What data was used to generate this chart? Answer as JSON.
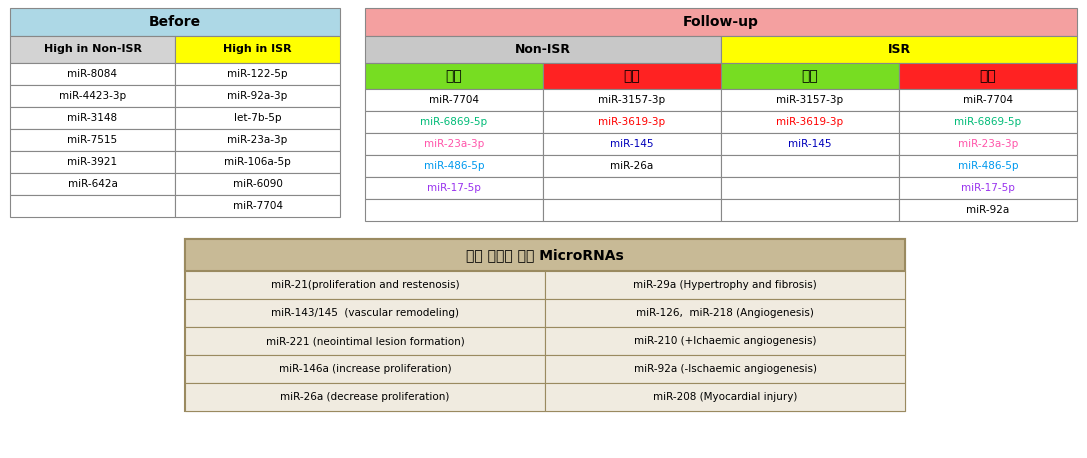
{
  "before_title": "Before",
  "before_title_bg": "#ADD8E6",
  "before_col1_header": "High in Non-ISR",
  "before_col2_header": "High in ISR",
  "before_col1_header_bg": "#D3D3D3",
  "before_col2_header_bg": "#FFFF00",
  "before_col1": [
    "miR-8084",
    "miR-4423-3p",
    "miR-3148",
    "miR-7515",
    "miR-3921",
    "miR-642a"
  ],
  "before_col2": [
    "miR-122-5p",
    "miR-92a-3p",
    "let-7b-5p",
    "miR-23a-3p",
    "miR-106a-5p",
    "miR-6090",
    "miR-7704"
  ],
  "before_col1_colors": [
    "#000000",
    "#000000",
    "#000000",
    "#000000",
    "#000000",
    "#000000"
  ],
  "before_col2_colors": [
    "#000000",
    "#000000",
    "#000000",
    "#000000",
    "#000000",
    "#000000",
    "#000000"
  ],
  "followup_title": "Follow-up",
  "followup_title_bg": "#F4A0A0",
  "nonisr_header": "Non-ISR",
  "nonisr_header_bg": "#C8C8C8",
  "isr_header": "ISR",
  "isr_header_bg": "#FFFF00",
  "gamso_header": "감소",
  "jenga_header": "증가",
  "gamso_bg": "#77DD22",
  "jenga_bg": "#FF2222",
  "nonisr_gamso": [
    "miR-7704",
    "miR-6869-5p",
    "miR-23a-3p",
    "miR-486-5p",
    "miR-17-5p"
  ],
  "nonisr_gamso_colors": [
    "#000000",
    "#00BB77",
    "#FF55AA",
    "#0099EE",
    "#9933EE"
  ],
  "nonisr_jenga": [
    "miR-3157-3p",
    "miR-3619-3p",
    "miR-145",
    "miR-26a"
  ],
  "nonisr_jenga_colors": [
    "#000000",
    "#FF0000",
    "#0000BB",
    "#000000"
  ],
  "isr_gamso": [
    "miR-3157-3p",
    "miR-3619-3p",
    "miR-145"
  ],
  "isr_gamso_colors": [
    "#000000",
    "#FF0000",
    "#0000BB"
  ],
  "isr_jenga": [
    "miR-7704",
    "miR-6869-5p",
    "miR-23a-3p",
    "miR-486-5p",
    "miR-17-5p",
    "miR-92a"
  ],
  "isr_jenga_colors": [
    "#000000",
    "#00BB77",
    "#FF55AA",
    "#0099EE",
    "#9933EE",
    "#000000"
  ],
  "bottom_title": "혁관 재협착 관련 MicroRNAs",
  "bottom_title_bg": "#C8BA96",
  "bottom_bg": "#F0EBE0",
  "bottom_border_color": "#9A8A60",
  "bottom_left": [
    "miR-21(proliferation and restenosis)",
    "miR-143/145  (vascular remodeling)",
    "miR-221 (neointimal lesion formation)",
    "miR-146a (increase proliferation)",
    "miR-26a (decrease proliferation)"
  ],
  "bottom_right": [
    "miR-29a (Hypertrophy and fibrosis)",
    "miR-126,  miR-218 (Angiogenesis)",
    "miR-210 (+Ichaemic angiogenesis)",
    "miR-92a (-Ischaemic angiogenesis)",
    "miR-208 (Myocardial injury)"
  ]
}
